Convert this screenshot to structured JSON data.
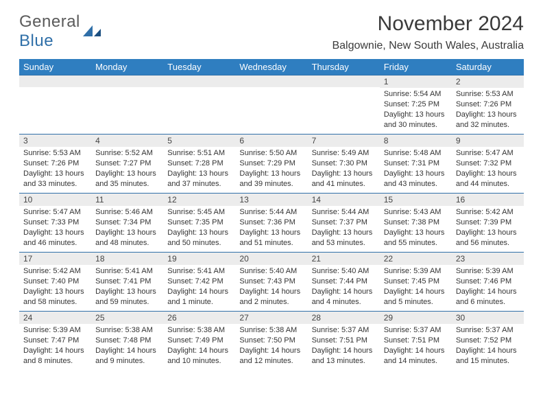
{
  "logo": {
    "text_general": "General",
    "text_blue": "Blue"
  },
  "title": "November 2024",
  "location": "Balgownie, New South Wales, Australia",
  "colors": {
    "header_bg": "#2f7ec0",
    "header_text": "#ffffff",
    "day_bg": "#ececec",
    "border": "#2f6fa8",
    "logo_blue": "#2f6fa8"
  },
  "dayNames": [
    "Sunday",
    "Monday",
    "Tuesday",
    "Wednesday",
    "Thursday",
    "Friday",
    "Saturday"
  ],
  "weeks": [
    [
      {
        "n": "",
        "sr": "",
        "ss": "",
        "dl": ""
      },
      {
        "n": "",
        "sr": "",
        "ss": "",
        "dl": ""
      },
      {
        "n": "",
        "sr": "",
        "ss": "",
        "dl": ""
      },
      {
        "n": "",
        "sr": "",
        "ss": "",
        "dl": ""
      },
      {
        "n": "",
        "sr": "",
        "ss": "",
        "dl": ""
      },
      {
        "n": "1",
        "sr": "Sunrise: 5:54 AM",
        "ss": "Sunset: 7:25 PM",
        "dl": "Daylight: 13 hours and 30 minutes."
      },
      {
        "n": "2",
        "sr": "Sunrise: 5:53 AM",
        "ss": "Sunset: 7:26 PM",
        "dl": "Daylight: 13 hours and 32 minutes."
      }
    ],
    [
      {
        "n": "3",
        "sr": "Sunrise: 5:53 AM",
        "ss": "Sunset: 7:26 PM",
        "dl": "Daylight: 13 hours and 33 minutes."
      },
      {
        "n": "4",
        "sr": "Sunrise: 5:52 AM",
        "ss": "Sunset: 7:27 PM",
        "dl": "Daylight: 13 hours and 35 minutes."
      },
      {
        "n": "5",
        "sr": "Sunrise: 5:51 AM",
        "ss": "Sunset: 7:28 PM",
        "dl": "Daylight: 13 hours and 37 minutes."
      },
      {
        "n": "6",
        "sr": "Sunrise: 5:50 AM",
        "ss": "Sunset: 7:29 PM",
        "dl": "Daylight: 13 hours and 39 minutes."
      },
      {
        "n": "7",
        "sr": "Sunrise: 5:49 AM",
        "ss": "Sunset: 7:30 PM",
        "dl": "Daylight: 13 hours and 41 minutes."
      },
      {
        "n": "8",
        "sr": "Sunrise: 5:48 AM",
        "ss": "Sunset: 7:31 PM",
        "dl": "Daylight: 13 hours and 43 minutes."
      },
      {
        "n": "9",
        "sr": "Sunrise: 5:47 AM",
        "ss": "Sunset: 7:32 PM",
        "dl": "Daylight: 13 hours and 44 minutes."
      }
    ],
    [
      {
        "n": "10",
        "sr": "Sunrise: 5:47 AM",
        "ss": "Sunset: 7:33 PM",
        "dl": "Daylight: 13 hours and 46 minutes."
      },
      {
        "n": "11",
        "sr": "Sunrise: 5:46 AM",
        "ss": "Sunset: 7:34 PM",
        "dl": "Daylight: 13 hours and 48 minutes."
      },
      {
        "n": "12",
        "sr": "Sunrise: 5:45 AM",
        "ss": "Sunset: 7:35 PM",
        "dl": "Daylight: 13 hours and 50 minutes."
      },
      {
        "n": "13",
        "sr": "Sunrise: 5:44 AM",
        "ss": "Sunset: 7:36 PM",
        "dl": "Daylight: 13 hours and 51 minutes."
      },
      {
        "n": "14",
        "sr": "Sunrise: 5:44 AM",
        "ss": "Sunset: 7:37 PM",
        "dl": "Daylight: 13 hours and 53 minutes."
      },
      {
        "n": "15",
        "sr": "Sunrise: 5:43 AM",
        "ss": "Sunset: 7:38 PM",
        "dl": "Daylight: 13 hours and 55 minutes."
      },
      {
        "n": "16",
        "sr": "Sunrise: 5:42 AM",
        "ss": "Sunset: 7:39 PM",
        "dl": "Daylight: 13 hours and 56 minutes."
      }
    ],
    [
      {
        "n": "17",
        "sr": "Sunrise: 5:42 AM",
        "ss": "Sunset: 7:40 PM",
        "dl": "Daylight: 13 hours and 58 minutes."
      },
      {
        "n": "18",
        "sr": "Sunrise: 5:41 AM",
        "ss": "Sunset: 7:41 PM",
        "dl": "Daylight: 13 hours and 59 minutes."
      },
      {
        "n": "19",
        "sr": "Sunrise: 5:41 AM",
        "ss": "Sunset: 7:42 PM",
        "dl": "Daylight: 14 hours and 1 minute."
      },
      {
        "n": "20",
        "sr": "Sunrise: 5:40 AM",
        "ss": "Sunset: 7:43 PM",
        "dl": "Daylight: 14 hours and 2 minutes."
      },
      {
        "n": "21",
        "sr": "Sunrise: 5:40 AM",
        "ss": "Sunset: 7:44 PM",
        "dl": "Daylight: 14 hours and 4 minutes."
      },
      {
        "n": "22",
        "sr": "Sunrise: 5:39 AM",
        "ss": "Sunset: 7:45 PM",
        "dl": "Daylight: 14 hours and 5 minutes."
      },
      {
        "n": "23",
        "sr": "Sunrise: 5:39 AM",
        "ss": "Sunset: 7:46 PM",
        "dl": "Daylight: 14 hours and 6 minutes."
      }
    ],
    [
      {
        "n": "24",
        "sr": "Sunrise: 5:39 AM",
        "ss": "Sunset: 7:47 PM",
        "dl": "Daylight: 14 hours and 8 minutes."
      },
      {
        "n": "25",
        "sr": "Sunrise: 5:38 AM",
        "ss": "Sunset: 7:48 PM",
        "dl": "Daylight: 14 hours and 9 minutes."
      },
      {
        "n": "26",
        "sr": "Sunrise: 5:38 AM",
        "ss": "Sunset: 7:49 PM",
        "dl": "Daylight: 14 hours and 10 minutes."
      },
      {
        "n": "27",
        "sr": "Sunrise: 5:38 AM",
        "ss": "Sunset: 7:50 PM",
        "dl": "Daylight: 14 hours and 12 minutes."
      },
      {
        "n": "28",
        "sr": "Sunrise: 5:37 AM",
        "ss": "Sunset: 7:51 PM",
        "dl": "Daylight: 14 hours and 13 minutes."
      },
      {
        "n": "29",
        "sr": "Sunrise: 5:37 AM",
        "ss": "Sunset: 7:51 PM",
        "dl": "Daylight: 14 hours and 14 minutes."
      },
      {
        "n": "30",
        "sr": "Sunrise: 5:37 AM",
        "ss": "Sunset: 7:52 PM",
        "dl": "Daylight: 14 hours and 15 minutes."
      }
    ]
  ]
}
